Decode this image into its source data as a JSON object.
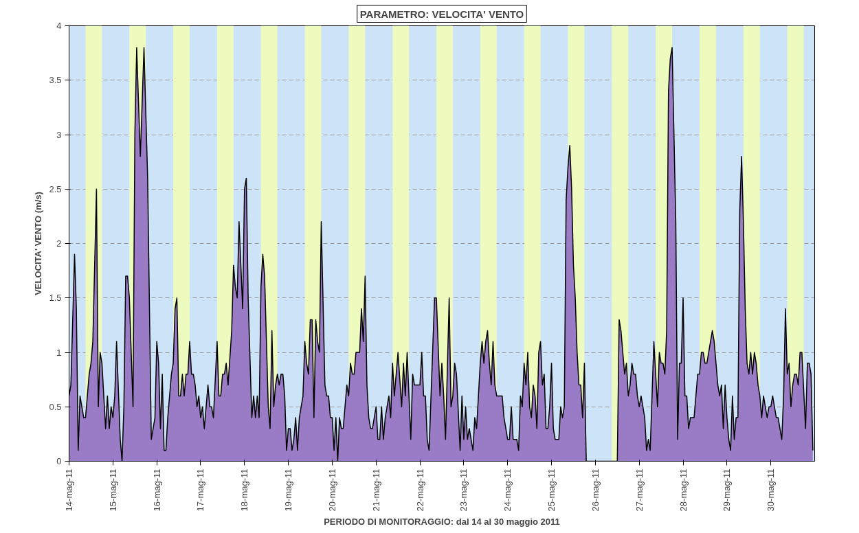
{
  "chart_data": {
    "type": "area",
    "title": "PARAMETRO: VELOCITA' VENTO",
    "xlabel": "PERIODO DI MONITORAGGIO: dal 14 al 30 maggio 2011",
    "ylabel": "VELOCITA' VENTO (m/s)",
    "xlim": [
      "2011-05-14T00:00",
      "2011-05-31T00:00"
    ],
    "xticks": [
      {
        "value": "2011-05-14",
        "label": "14-mag-11"
      },
      {
        "value": "2011-05-15",
        "label": "15-mag-11"
      },
      {
        "value": "2011-05-16",
        "label": "16-mag-11"
      },
      {
        "value": "2011-05-17",
        "label": "17-mag-11"
      },
      {
        "value": "2011-05-18",
        "label": "18-mag-11"
      },
      {
        "value": "2011-05-19",
        "label": "19-mag-11"
      },
      {
        "value": "2011-05-20",
        "label": "20-mag-11"
      },
      {
        "value": "2011-05-21",
        "label": "21-mag-11"
      },
      {
        "value": "2011-05-22",
        "label": "22-mag-11"
      },
      {
        "value": "2011-05-23",
        "label": "23-mag-11"
      },
      {
        "value": "2011-05-24",
        "label": "24-mag-11"
      },
      {
        "value": "2011-05-25",
        "label": "25-mag-11"
      },
      {
        "value": "2011-05-26",
        "label": "26-mag-11"
      },
      {
        "value": "2011-05-27",
        "label": "27-mag-11"
      },
      {
        "value": "2011-05-28",
        "label": "28-mag-11"
      },
      {
        "value": "2011-05-29",
        "label": "29-mag-11"
      },
      {
        "value": "2011-05-30",
        "label": "30-mag-11"
      }
    ],
    "ylim": [
      0,
      4
    ],
    "yticks": [
      0,
      0.5,
      1,
      1.5,
      2,
      2.5,
      3,
      3.5,
      4
    ],
    "grid": "y",
    "bands": [
      {
        "axis": "x",
        "from": "2011-05-14T09:00",
        "to": "2011-05-14T18:00",
        "color": "#eefbbe"
      },
      {
        "axis": "x",
        "from": "2011-05-15T09:00",
        "to": "2011-05-15T18:00",
        "color": "#eefbbe"
      },
      {
        "axis": "x",
        "from": "2011-05-16T09:00",
        "to": "2011-05-16T18:00",
        "color": "#eefbbe"
      },
      {
        "axis": "x",
        "from": "2011-05-17T09:00",
        "to": "2011-05-17T18:00",
        "color": "#eefbbe"
      },
      {
        "axis": "x",
        "from": "2011-05-18T09:00",
        "to": "2011-05-18T18:00",
        "color": "#eefbbe"
      },
      {
        "axis": "x",
        "from": "2011-05-19T09:00",
        "to": "2011-05-19T18:00",
        "color": "#eefbbe"
      },
      {
        "axis": "x",
        "from": "2011-05-20T09:00",
        "to": "2011-05-20T18:00",
        "color": "#eefbbe"
      },
      {
        "axis": "x",
        "from": "2011-05-21T09:00",
        "to": "2011-05-21T18:00",
        "color": "#eefbbe"
      },
      {
        "axis": "x",
        "from": "2011-05-22T09:00",
        "to": "2011-05-22T18:00",
        "color": "#eefbbe"
      },
      {
        "axis": "x",
        "from": "2011-05-23T09:00",
        "to": "2011-05-23T18:00",
        "color": "#eefbbe"
      },
      {
        "axis": "x",
        "from": "2011-05-24T09:00",
        "to": "2011-05-24T18:00",
        "color": "#eefbbe"
      },
      {
        "axis": "x",
        "from": "2011-05-25T09:00",
        "to": "2011-05-25T18:00",
        "color": "#eefbbe"
      },
      {
        "axis": "x",
        "from": "2011-05-26T09:00",
        "to": "2011-05-26T18:00",
        "color": "#eefbbe"
      },
      {
        "axis": "x",
        "from": "2011-05-27T09:00",
        "to": "2011-05-27T18:00",
        "color": "#eefbbe"
      },
      {
        "axis": "x",
        "from": "2011-05-28T09:00",
        "to": "2011-05-28T18:00",
        "color": "#eefbbe"
      },
      {
        "axis": "x",
        "from": "2011-05-29T09:00",
        "to": "2011-05-29T18:00",
        "color": "#eefbbe"
      },
      {
        "axis": "x",
        "from": "2011-05-30T09:00",
        "to": "2011-05-30T18:00",
        "color": "#eefbbe"
      }
    ],
    "series": [
      {
        "color": "#9a7cc6",
        "x": [
          "2011-05-14T00:00",
          "2011-05-14T01:00",
          "2011-05-14T03:00",
          "2011-05-14T04:00",
          "2011-05-14T05:00",
          "2011-05-14T06:00",
          "2011-05-14T08:00",
          "2011-05-14T09:00",
          "2011-05-14T11:00",
          "2011-05-14T12:00",
          "2011-05-14T13:00",
          "2011-05-14T15:00",
          "2011-05-14T16:00",
          "2011-05-14T17:00",
          "2011-05-14T18:00",
          "2011-05-14T20:00",
          "2011-05-14T21:00",
          "2011-05-14T22:00",
          "2011-05-14T23:00",
          "2011-05-15T00:00",
          "2011-05-15T01:00",
          "2011-05-15T02:00",
          "2011-05-15T04:00",
          "2011-05-15T05:00",
          "2011-05-15T06:00",
          "2011-05-15T07:00",
          "2011-05-15T08:00",
          "2011-05-15T09:00",
          "2011-05-15T11:00",
          "2011-05-15T12:00",
          "2011-05-15T13:00",
          "2011-05-15T15:00",
          "2011-05-15T17:00",
          "2011-05-15T19:00",
          "2011-05-15T21:00",
          "2011-05-15T23:00",
          "2011-05-16T00:00",
          "2011-05-16T01:00",
          "2011-05-16T02:00",
          "2011-05-16T03:00",
          "2011-05-16T04:00",
          "2011-05-16T05:00",
          "2011-05-16T06:00",
          "2011-05-16T08:00",
          "2011-05-16T09:00",
          "2011-05-16T10:00",
          "2011-05-16T11:00",
          "2011-05-16T12:00",
          "2011-05-16T13:00",
          "2011-05-16T14:00",
          "2011-05-16T15:00",
          "2011-05-16T16:00",
          "2011-05-16T17:00",
          "2011-05-16T18:00",
          "2011-05-16T19:00",
          "2011-05-16T20:00",
          "2011-05-16T21:00",
          "2011-05-16T22:00",
          "2011-05-16T23:00",
          "2011-05-17T00:00",
          "2011-05-17T01:00",
          "2011-05-17T02:00",
          "2011-05-17T04:00",
          "2011-05-17T05:00",
          "2011-05-17T06:00",
          "2011-05-17T07:00",
          "2011-05-17T09:00",
          "2011-05-17T10:00",
          "2011-05-17T11:00",
          "2011-05-17T12:00",
          "2011-05-17T13:00",
          "2011-05-17T14:00",
          "2011-05-17T15:00",
          "2011-05-17T17:00",
          "2011-05-17T18:00",
          "2011-05-17T19:00",
          "2011-05-17T20:00",
          "2011-05-17T21:00",
          "2011-05-17T23:00",
          "2011-05-18T00:00",
          "2011-05-18T01:00",
          "2011-05-18T02:00",
          "2011-05-18T04:00",
          "2011-05-18T05:00",
          "2011-05-18T06:00",
          "2011-05-18T07:00",
          "2011-05-18T08:00",
          "2011-05-18T09:00",
          "2011-05-18T10:00",
          "2011-05-18T11:00",
          "2011-05-18T13:00",
          "2011-05-18T14:00",
          "2011-05-18T15:00",
          "2011-05-18T16:00",
          "2011-05-18T17:00",
          "2011-05-18T18:00",
          "2011-05-18T19:00",
          "2011-05-18T20:00",
          "2011-05-18T21:00",
          "2011-05-18T22:00",
          "2011-05-18T23:00",
          "2011-05-19T00:00",
          "2011-05-19T01:00",
          "2011-05-19T02:00",
          "2011-05-19T03:00",
          "2011-05-19T04:00",
          "2011-05-19T05:00",
          "2011-05-19T06:00",
          "2011-05-19T08:00",
          "2011-05-19T09:00",
          "2011-05-19T10:00",
          "2011-05-19T11:00",
          "2011-05-19T12:00",
          "2011-05-19T13:00",
          "2011-05-19T14:00",
          "2011-05-19T15:00",
          "2011-05-19T16:00",
          "2011-05-19T17:00",
          "2011-05-19T18:00",
          "2011-05-19T20:00",
          "2011-05-19T21:00",
          "2011-05-19T22:00",
          "2011-05-19T23:00",
          "2011-05-20T00:00",
          "2011-05-20T01:00",
          "2011-05-20T02:00",
          "2011-05-20T03:00",
          "2011-05-20T04:00",
          "2011-05-20T05:00",
          "2011-05-20T06:00",
          "2011-05-20T08:00",
          "2011-05-20T09:00",
          "2011-05-20T10:00",
          "2011-05-20T11:00",
          "2011-05-20T12:00",
          "2011-05-20T13:00",
          "2011-05-20T14:00",
          "2011-05-20T15:00",
          "2011-05-20T16:00",
          "2011-05-20T17:00",
          "2011-05-20T18:00",
          "2011-05-20T19:00",
          "2011-05-20T20:00",
          "2011-05-20T21:00",
          "2011-05-20T22:00",
          "2011-05-21T00:00",
          "2011-05-21T01:00",
          "2011-05-21T02:00",
          "2011-05-21T03:00",
          "2011-05-21T04:00",
          "2011-05-21T05:00",
          "2011-05-21T06:00",
          "2011-05-21T07:00",
          "2011-05-21T08:00",
          "2011-05-21T09:00",
          "2011-05-21T10:00",
          "2011-05-21T12:00",
          "2011-05-21T14:00",
          "2011-05-21T15:00",
          "2011-05-21T16:00",
          "2011-05-21T17:00",
          "2011-05-21T19:00",
          "2011-05-21T20:00",
          "2011-05-21T21:00",
          "2011-05-21T22:00",
          "2011-05-22T00:00",
          "2011-05-22T01:00",
          "2011-05-22T02:00",
          "2011-05-22T03:00",
          "2011-05-22T04:00",
          "2011-05-22T05:00",
          "2011-05-22T08:00",
          "2011-05-22T09:00",
          "2011-05-22T11:00",
          "2011-05-22T12:00",
          "2011-05-22T13:00",
          "2011-05-22T14:00",
          "2011-05-22T16:00",
          "2011-05-22T17:00",
          "2011-05-22T18:00",
          "2011-05-22T19:00",
          "2011-05-22T20:00",
          "2011-05-22T22:00",
          "2011-05-22T23:00",
          "2011-05-23T00:00",
          "2011-05-23T01:00",
          "2011-05-23T02:00",
          "2011-05-23T03:00",
          "2011-05-23T05:00",
          "2011-05-23T06:00",
          "2011-05-23T07:00",
          "2011-05-23T09:00",
          "2011-05-23T10:00",
          "2011-05-23T11:00",
          "2011-05-23T12:00",
          "2011-05-23T13:00",
          "2011-05-23T14:00",
          "2011-05-23T15:00",
          "2011-05-23T16:00",
          "2011-05-23T17:00",
          "2011-05-23T18:00",
          "2011-05-23T19:00",
          "2011-05-23T21:00",
          "2011-05-23T22:00",
          "2011-05-23T23:00",
          "2011-05-24T00:00",
          "2011-05-24T01:00",
          "2011-05-24T02:00",
          "2011-05-24T03:00",
          "2011-05-24T04:00",
          "2011-05-24T05:00",
          "2011-05-24T06:00",
          "2011-05-24T07:00",
          "2011-05-24T08:00",
          "2011-05-24T09:00",
          "2011-05-24T10:00",
          "2011-05-24T11:00",
          "2011-05-24T12:00",
          "2011-05-24T13:00",
          "2011-05-24T14:00",
          "2011-05-24T15:00",
          "2011-05-24T16:00",
          "2011-05-24T17:00",
          "2011-05-24T18:00",
          "2011-05-24T19:00",
          "2011-05-24T20:00",
          "2011-05-24T21:00",
          "2011-05-24T22:00",
          "2011-05-24T23:00",
          "2011-05-25T00:00",
          "2011-05-25T01:00",
          "2011-05-25T02:00",
          "2011-05-25T03:00",
          "2011-05-25T04:00",
          "2011-05-25T05:00",
          "2011-05-25T06:00",
          "2011-05-25T07:00",
          "2011-05-25T08:00",
          "2011-05-25T09:00",
          "2011-05-25T10:00",
          "2011-05-25T11:00",
          "2011-05-25T12:00",
          "2011-05-25T13:00",
          "2011-05-25T14:00",
          "2011-05-25T15:00",
          "2011-05-25T16:00",
          "2011-05-25T17:00",
          "2011-05-25T18:00",
          "2011-05-25T19:00",
          "2011-05-26T12:00",
          "2011-05-26T13:00",
          "2011-05-26T14:00",
          "2011-05-26T15:00",
          "2011-05-26T16:00",
          "2011-05-26T17:00",
          "2011-05-26T18:00",
          "2011-05-26T19:00",
          "2011-05-26T20:00",
          "2011-05-26T21:00",
          "2011-05-26T22:00",
          "2011-05-26T23:00",
          "2011-05-27T00:00",
          "2011-05-27T01:00",
          "2011-05-27T02:00",
          "2011-05-27T03:00",
          "2011-05-27T04:00",
          "2011-05-27T05:00",
          "2011-05-27T06:00",
          "2011-05-27T08:00",
          "2011-05-27T09:00",
          "2011-05-27T10:00",
          "2011-05-27T11:00",
          "2011-05-27T12:00",
          "2011-05-27T13:00",
          "2011-05-27T14:00",
          "2011-05-27T15:00",
          "2011-05-27T16:00",
          "2011-05-27T17:00",
          "2011-05-27T18:00",
          "2011-05-27T20:00",
          "2011-05-27T21:00",
          "2011-05-27T22:00",
          "2011-05-27T23:00",
          "2011-05-28T00:00",
          "2011-05-28T01:00",
          "2011-05-28T02:00",
          "2011-05-28T03:00",
          "2011-05-28T04:00",
          "2011-05-28T06:00",
          "2011-05-28T08:00",
          "2011-05-28T09:00",
          "2011-05-28T10:00",
          "2011-05-28T11:00",
          "2011-05-28T12:00",
          "2011-05-28T13:00",
          "2011-05-28T14:00",
          "2011-05-28T16:00",
          "2011-05-28T17:00",
          "2011-05-28T19:00",
          "2011-05-28T20:00",
          "2011-05-28T21:00",
          "2011-05-28T22:00",
          "2011-05-28T23:00",
          "2011-05-29T00:00",
          "2011-05-29T01:00",
          "2011-05-29T02:00",
          "2011-05-29T03:00",
          "2011-05-29T04:00",
          "2011-05-29T05:00",
          "2011-05-29T06:00",
          "2011-05-29T07:00",
          "2011-05-29T08:00",
          "2011-05-29T09:00",
          "2011-05-29T10:00",
          "2011-05-29T11:00",
          "2011-05-29T12:00",
          "2011-05-29T13:00",
          "2011-05-29T14:00",
          "2011-05-29T15:00",
          "2011-05-29T16:00",
          "2011-05-29T17:00",
          "2011-05-29T18:00",
          "2011-05-29T19:00",
          "2011-05-29T20:00",
          "2011-05-29T21:00",
          "2011-05-29T22:00",
          "2011-05-29T23:00",
          "2011-05-30T00:00",
          "2011-05-30T01:00",
          "2011-05-30T02:00",
          "2011-05-30T03:00",
          "2011-05-30T04:00",
          "2011-05-30T06:00",
          "2011-05-30T07:00",
          "2011-05-30T08:00",
          "2011-05-30T09:00",
          "2011-05-30T10:00",
          "2011-05-30T11:00",
          "2011-05-30T12:00",
          "2011-05-30T13:00",
          "2011-05-30T14:00",
          "2011-05-30T15:00",
          "2011-05-30T16:00",
          "2011-05-30T17:00",
          "2011-05-30T19:00",
          "2011-05-30T20:00",
          "2011-05-30T21:00",
          "2011-05-30T22:00",
          "2011-05-30T23:00"
        ],
        "values": [
          0.6,
          0.7,
          1.9,
          1.4,
          0.1,
          0.6,
          0.4,
          0.4,
          0.8,
          0.9,
          1.1,
          2.5,
          0.5,
          1.0,
          0.9,
          0.3,
          0.6,
          0.3,
          0.5,
          0.4,
          0.6,
          1.1,
          0.2,
          0,
          0.5,
          1.7,
          1.7,
          1.5,
          0.5,
          3.0,
          3.8,
          2.8,
          3.8,
          2.6,
          0.2,
          0.4,
          1.1,
          0.9,
          0.3,
          0.8,
          0.1,
          0.1,
          0.4,
          0.8,
          0.9,
          1.4,
          1.5,
          0.6,
          0.6,
          0.8,
          0.6,
          0.8,
          0.8,
          1.1,
          0.8,
          0.8,
          0.7,
          0.5,
          0.6,
          0.4,
          0.5,
          0.3,
          0.7,
          0.5,
          0.5,
          0.4,
          1.1,
          0.6,
          0.6,
          0.8,
          0.8,
          0.9,
          0.7,
          1.2,
          1.8,
          1.6,
          1.5,
          2.2,
          1.4,
          2.5,
          2.6,
          1.5,
          0.4,
          0.6,
          0.4,
          0.6,
          0.4,
          1.6,
          1.9,
          1.7,
          0.5,
          0.3,
          1.2,
          0.5,
          0.7,
          0.8,
          0.7,
          0.8,
          0.8,
          0.6,
          0.1,
          0.3,
          0.3,
          0.1,
          0.2,
          0.4,
          0.1,
          0.4,
          0.6,
          1.1,
          0.9,
          0.8,
          1.3,
          1.3,
          0.4,
          1.3,
          1.1,
          1.0,
          2.2,
          0.7,
          0.6,
          0.6,
          0.4,
          0.4,
          0.1,
          0.4,
          0,
          0.4,
          0.3,
          0.3,
          0.7,
          0.6,
          0.9,
          0.8,
          0.8,
          1.0,
          1.0,
          1.0,
          1.4,
          1.1,
          1.7,
          0.7,
          0.4,
          0.3,
          0.3,
          0.5,
          0.2,
          0.2,
          0.5,
          0.2,
          0.4,
          0.5,
          0.6,
          0.4,
          0.9,
          0.6,
          1.0,
          0.5,
          0.9,
          0.6,
          1.0,
          0.2,
          0.8,
          0.7,
          0.7,
          0.7,
          1.0,
          0.6,
          0.6,
          0.2,
          0.1,
          1.5,
          1.5,
          0.6,
          0.9,
          0.6,
          0.2,
          1.5,
          0.5,
          0.6,
          0.9,
          0.8,
          0.1,
          0.6,
          0.2,
          0.5,
          0.2,
          0.3,
          0.1,
          0.4,
          0.3,
          0.9,
          1.1,
          0.9,
          1.1,
          1.2,
          0.9,
          0.7,
          1.1,
          0.7,
          0.6,
          0.6,
          0.6,
          0.4,
          0.3,
          0.2,
          0.2,
          0.5,
          0.2,
          0.2,
          0.2,
          0.1,
          0.6,
          0.5,
          0.9,
          0.7,
          1.0,
          0.5,
          0.4,
          0.7,
          0.6,
          0.3,
          1.0,
          1.1,
          0.7,
          0.8,
          0.3,
          0.3,
          0.5,
          0.9,
          0.3,
          0.2,
          0.2,
          0.2,
          0.5,
          0.4,
          0.5,
          2.4,
          2.7,
          2.9,
          2.5,
          1.8,
          1.5,
          1.0,
          0.7,
          0.7,
          0.4,
          0.9,
          0,
          0,
          1.3,
          1.2,
          1.0,
          0.8,
          0.9,
          0.6,
          0.7,
          0.9,
          0.8,
          0.8,
          0.6,
          0.5,
          0.6,
          0.5,
          0.4,
          0.1,
          0.2,
          0.1,
          1.1,
          0.8,
          0.5,
          1.0,
          0.9,
          0.9,
          0.8,
          1.2,
          3.4,
          3.7,
          3.8,
          2.2,
          0.2,
          0.9,
          0.9,
          1.5,
          0.6,
          0.6,
          0.3,
          0.4,
          0.4,
          0.8,
          0.8,
          1.0,
          1.0,
          0.9,
          0.9,
          1.0,
          1.2,
          1.1,
          0.7,
          0.6,
          0.7,
          0.3,
          0.7,
          0.4,
          0.2,
          0.1,
          0.6,
          0.2,
          0.4,
          0.4,
          2.3,
          2.8,
          2.2,
          1.4,
          0.9,
          0.8,
          1.0,
          0.8,
          1.0,
          0.9,
          0.7,
          0.6,
          0.4,
          0.6,
          0.5,
          0.4,
          0.5,
          0.5,
          0.6,
          0.5,
          0.4,
          0.4,
          0.2,
          0.6,
          1.4,
          0.8,
          0.9,
          0.5,
          0.7,
          0.8,
          0.8,
          0.7,
          1.0,
          1.0,
          0.3,
          0.9,
          0.9,
          0.8,
          0.1
        ]
      }
    ]
  }
}
